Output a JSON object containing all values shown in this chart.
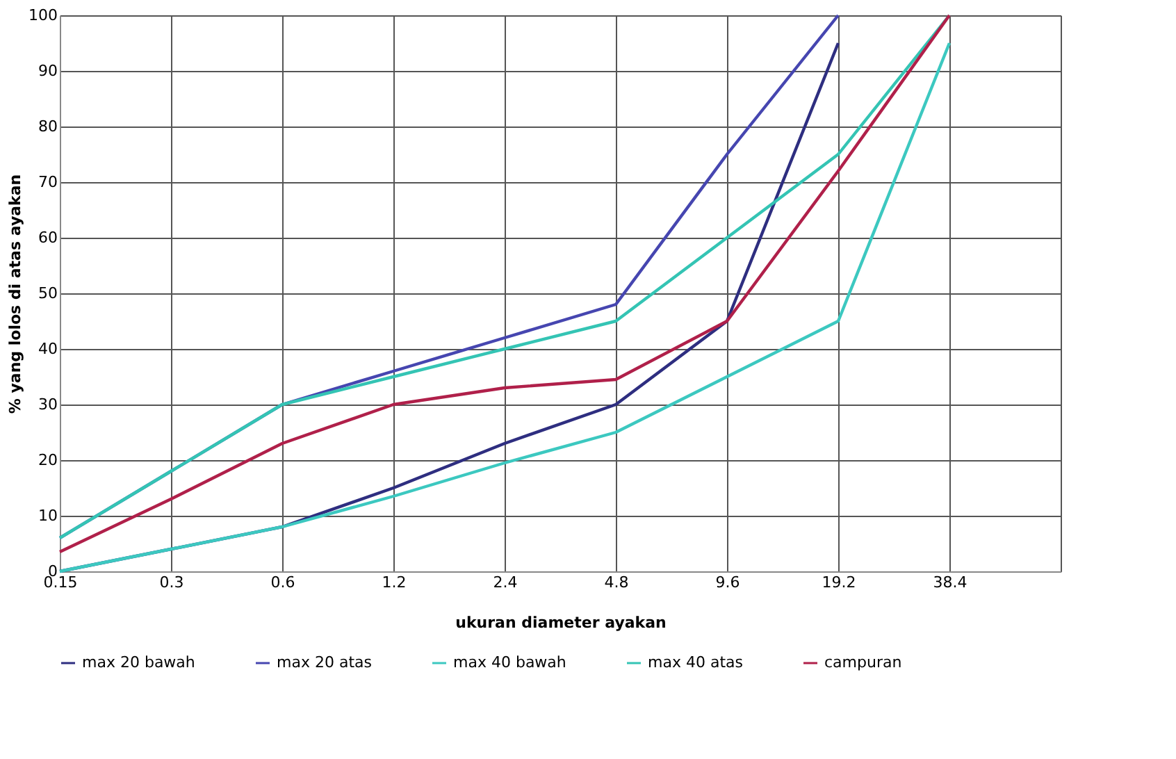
{
  "chart_data": {
    "type": "line",
    "xlabel": "ukuran diameter ayakan",
    "ylabel": "% yang lolos di atas ayakan",
    "categories": [
      "0.15",
      "0.3",
      "0.6",
      "1.2",
      "2.4",
      "4.8",
      "9.6",
      "19.2",
      "38.4",
      null
    ],
    "series": [
      {
        "name": "max 20 bawah",
        "color": "#2e2e80",
        "values": [
          0,
          4,
          8,
          15,
          23,
          30,
          45,
          95,
          null,
          null
        ]
      },
      {
        "name": "max 20 atas",
        "color": "#4646b0",
        "values": [
          6,
          18,
          30,
          36,
          42,
          48,
          75,
          100,
          null,
          null
        ]
      },
      {
        "name": "max 40 bawah",
        "color": "#3cc8c0",
        "values": [
          0,
          4,
          8,
          13.5,
          19.5,
          25,
          35,
          45,
          95,
          null
        ]
      },
      {
        "name": "max 40 atas",
        "color": "#34c4b4",
        "values": [
          6,
          18,
          30,
          35,
          40,
          45,
          60,
          75,
          100,
          null
        ]
      },
      {
        "name": "campuran",
        "color": "#b0204a",
        "values": [
          3.5,
          13,
          23,
          30,
          33,
          34.5,
          45,
          72,
          100,
          null
        ]
      }
    ],
    "ylim": [
      0,
      100
    ],
    "yticks": [
      0,
      10,
      20,
      30,
      40,
      50,
      60,
      70,
      80,
      90,
      100
    ],
    "grid": true,
    "legend": "bottom",
    "marker": "none",
    "line_style": "solid"
  }
}
